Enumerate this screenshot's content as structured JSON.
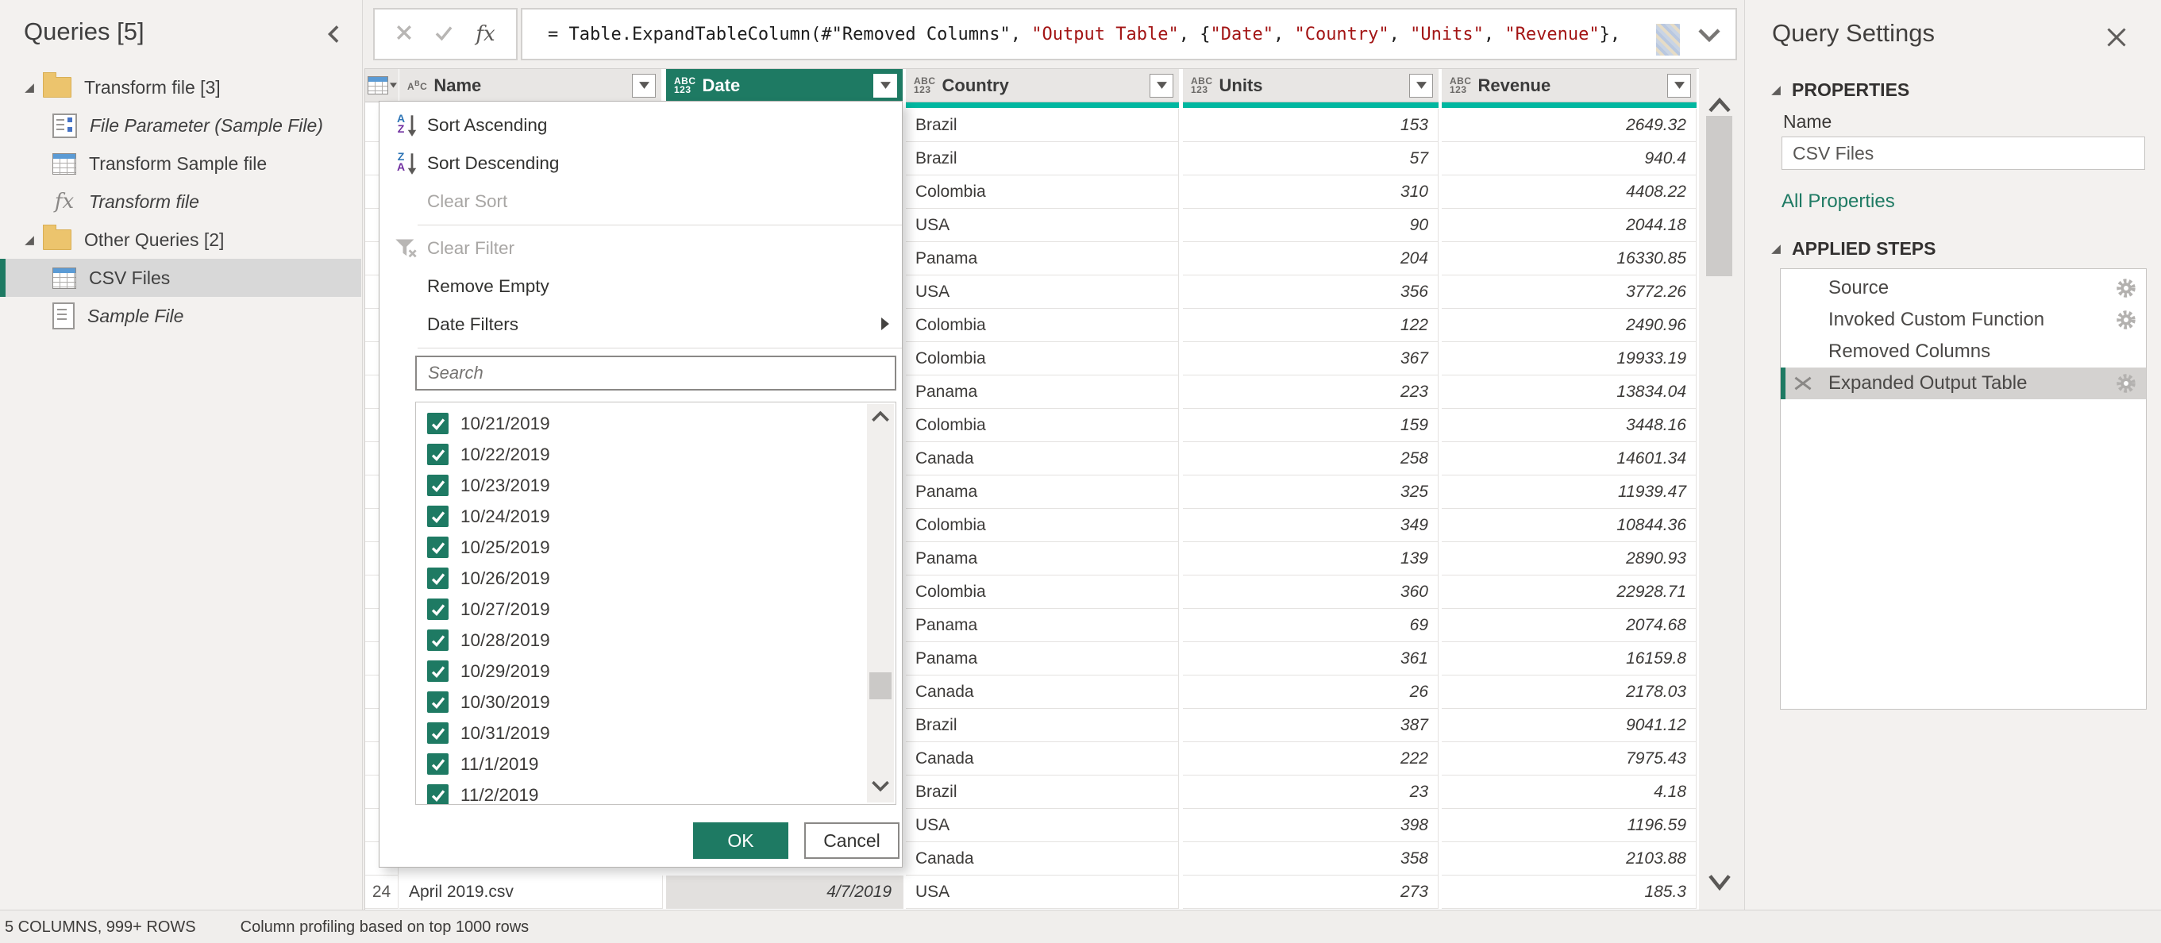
{
  "colors": {
    "accent_teal": "#1e7a63",
    "quality_bar": "#00b7a0",
    "string_red": "#a31515",
    "selected_bg": "#d8d8d8"
  },
  "sidebar": {
    "title": "Queries [5]",
    "items": [
      {
        "kind": "folder",
        "label": "Transform file [3]"
      },
      {
        "kind": "query",
        "icon": "parameter",
        "label": "File Parameter (Sample File)",
        "italic": true
      },
      {
        "kind": "query",
        "icon": "table",
        "label": "Transform Sample file"
      },
      {
        "kind": "query",
        "icon": "fx",
        "label": "Transform file",
        "italic": true
      },
      {
        "kind": "folder",
        "label": "Other Queries [2]"
      },
      {
        "kind": "query",
        "icon": "table",
        "label": "CSV Files",
        "selected": true
      },
      {
        "kind": "query",
        "icon": "document",
        "label": "Sample File",
        "italic": true
      }
    ]
  },
  "formula_bar": {
    "segments": [
      {
        "text": "= Table.ExpandTableColumn(#\"Removed Columns\", ",
        "color": "#1e1e1e"
      },
      {
        "text": "\"Output Table\"",
        "color": "#a31515"
      },
      {
        "text": ", {",
        "color": "#1e1e1e"
      },
      {
        "text": "\"Date\"",
        "color": "#a31515"
      },
      {
        "text": ", ",
        "color": "#1e1e1e"
      },
      {
        "text": "\"Country\"",
        "color": "#a31515"
      },
      {
        "text": ", ",
        "color": "#1e1e1e"
      },
      {
        "text": "\"Units\"",
        "color": "#a31515"
      },
      {
        "text": ", ",
        "color": "#1e1e1e"
      },
      {
        "text": "\"Revenue\"",
        "color": "#a31515"
      },
      {
        "text": "},",
        "color": "#1e1e1e"
      }
    ]
  },
  "table": {
    "columns": [
      {
        "label": "Name",
        "type_icon": "abc",
        "selected": false
      },
      {
        "label": "Date",
        "type_icon": "abc123",
        "selected": true
      },
      {
        "label": "Country",
        "type_icon": "abc123",
        "selected": false
      },
      {
        "label": "Units",
        "type_icon": "abc123",
        "selected": false
      },
      {
        "label": "Revenue",
        "type_icon": "abc123",
        "selected": false
      }
    ],
    "rows": [
      {
        "country": "Brazil",
        "units": "153",
        "revenue": "2649.32"
      },
      {
        "country": "Brazil",
        "units": "57",
        "revenue": "940.4"
      },
      {
        "country": "Colombia",
        "units": "310",
        "revenue": "4408.22"
      },
      {
        "country": "USA",
        "units": "90",
        "revenue": "2044.18"
      },
      {
        "country": "Panama",
        "units": "204",
        "revenue": "16330.85"
      },
      {
        "country": "USA",
        "units": "356",
        "revenue": "3772.26"
      },
      {
        "country": "Colombia",
        "units": "122",
        "revenue": "2490.96"
      },
      {
        "country": "Colombia",
        "units": "367",
        "revenue": "19933.19"
      },
      {
        "country": "Panama",
        "units": "223",
        "revenue": "13834.04"
      },
      {
        "country": "Colombia",
        "units": "159",
        "revenue": "3448.16"
      },
      {
        "country": "Canada",
        "units": "258",
        "revenue": "14601.34"
      },
      {
        "country": "Panama",
        "units": "325",
        "revenue": "11939.47"
      },
      {
        "country": "Colombia",
        "units": "349",
        "revenue": "10844.36"
      },
      {
        "country": "Panama",
        "units": "139",
        "revenue": "2890.93"
      },
      {
        "country": "Colombia",
        "units": "360",
        "revenue": "22928.71"
      },
      {
        "country": "Panama",
        "units": "69",
        "revenue": "2074.68"
      },
      {
        "country": "Panama",
        "units": "361",
        "revenue": "16159.8"
      },
      {
        "country": "Canada",
        "units": "26",
        "revenue": "2178.03"
      },
      {
        "country": "Brazil",
        "units": "387",
        "revenue": "9041.12"
      },
      {
        "country": "Canada",
        "units": "222",
        "revenue": "7975.43"
      },
      {
        "country": "Brazil",
        "units": "23",
        "revenue": "4.18"
      },
      {
        "country": "USA",
        "units": "398",
        "revenue": "1196.59"
      },
      {
        "country": "Canada",
        "units": "358",
        "revenue": "2103.88"
      },
      {
        "country": "USA",
        "units": "273",
        "revenue": "185.3"
      }
    ],
    "bottom_row": {
      "number": "24",
      "name": "April 2019.csv",
      "date": "4/7/2019"
    }
  },
  "filter_menu": {
    "items": [
      {
        "label": "Sort Ascending",
        "icon": "sort-asc"
      },
      {
        "label": "Sort Descending",
        "icon": "sort-desc"
      },
      {
        "label": "Clear Sort",
        "disabled": true
      },
      {
        "divider": true
      },
      {
        "label": "Clear Filter",
        "icon": "clear-filter",
        "disabled": true
      },
      {
        "label": "Remove Empty"
      },
      {
        "label": "Date Filters",
        "submenu": true
      },
      {
        "divider": true
      }
    ],
    "search_placeholder": "Search",
    "dates": [
      "10/21/2019",
      "10/22/2019",
      "10/23/2019",
      "10/24/2019",
      "10/25/2019",
      "10/26/2019",
      "10/27/2019",
      "10/28/2019",
      "10/29/2019",
      "10/30/2019",
      "10/31/2019",
      "11/1/2019",
      "11/2/2019"
    ],
    "ok_label": "OK",
    "cancel_label": "Cancel"
  },
  "query_settings": {
    "title": "Query Settings",
    "properties_label": "PROPERTIES",
    "name_label": "Name",
    "name_value": "CSV Files",
    "all_properties_label": "All Properties",
    "applied_steps_label": "APPLIED STEPS",
    "steps": [
      {
        "label": "Source",
        "gear": true
      },
      {
        "label": "Invoked Custom Function",
        "gear": true
      },
      {
        "label": "Removed Columns"
      },
      {
        "label": "Expanded Output Table",
        "gear": true,
        "selected": true,
        "removable": true
      }
    ]
  },
  "status_bar": {
    "left": "5 COLUMNS, 999+ ROWS",
    "right": "Column profiling based on top 1000 rows"
  }
}
